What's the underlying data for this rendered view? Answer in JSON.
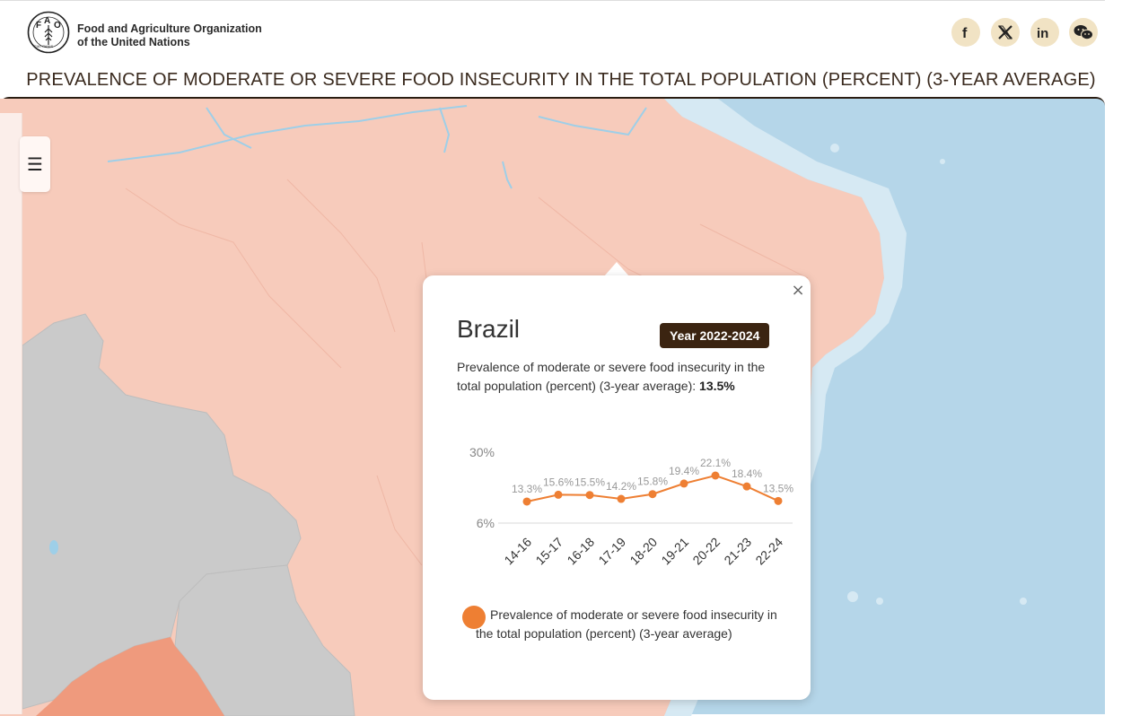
{
  "header": {
    "org_line1": "Food and Agriculture Organization",
    "org_line2": "of the United Nations",
    "logo_letters": [
      "F",
      "A",
      "O"
    ],
    "logo_motto": "FIAT PANIS",
    "social": [
      {
        "name": "facebook-icon",
        "label": "f"
      },
      {
        "name": "x-icon",
        "label": "X"
      },
      {
        "name": "linkedin-icon",
        "label": "in"
      },
      {
        "name": "wechat-icon",
        "label": "wechat"
      }
    ]
  },
  "page_title": "PREVALENCE OF MODERATE OR SEVERE FOOD INSECURITY IN THE TOTAL POPULATION (PERCENT) (3-YEAR AVERAGE)",
  "map": {
    "menu_icon": "☰",
    "colors": {
      "ocean": "#b5d6e9",
      "brazil": "#f7cbbb",
      "no_data": "#cacaca",
      "other": "#ef9a7d"
    }
  },
  "popup": {
    "country": "Brazil",
    "year_badge": "Year 2022-2024",
    "description": "Prevalence of moderate or severe food insecurity in the total population (percent) (3-year average): ",
    "value": "13.5%",
    "close_label": "×",
    "legend": "Prevalence of moderate or severe food insecurity in the total population (percent) (3-year average)"
  },
  "chart_data": {
    "type": "line",
    "title": "",
    "categories": [
      "14-16",
      "15-17",
      "16-18",
      "17-19",
      "18-20",
      "19-21",
      "20-22",
      "21-23",
      "22-24"
    ],
    "series": [
      {
        "name": "Prevalence of moderate or severe food insecurity in the total population (percent) (3-year average)",
        "values": [
          13.3,
          15.6,
          15.5,
          14.2,
          15.8,
          19.4,
          22.1,
          18.4,
          13.5
        ],
        "labels": [
          "13.3%",
          "15.6%",
          "15.5%",
          "14.2%",
          "15.8%",
          "19.4%",
          "22.1%",
          "18.4%",
          "13.5%"
        ],
        "color": "#ee7f33"
      }
    ],
    "y_ticks": [
      6,
      30
    ],
    "y_tick_labels": [
      "6%",
      "30%"
    ],
    "ylim": [
      6,
      30
    ]
  }
}
